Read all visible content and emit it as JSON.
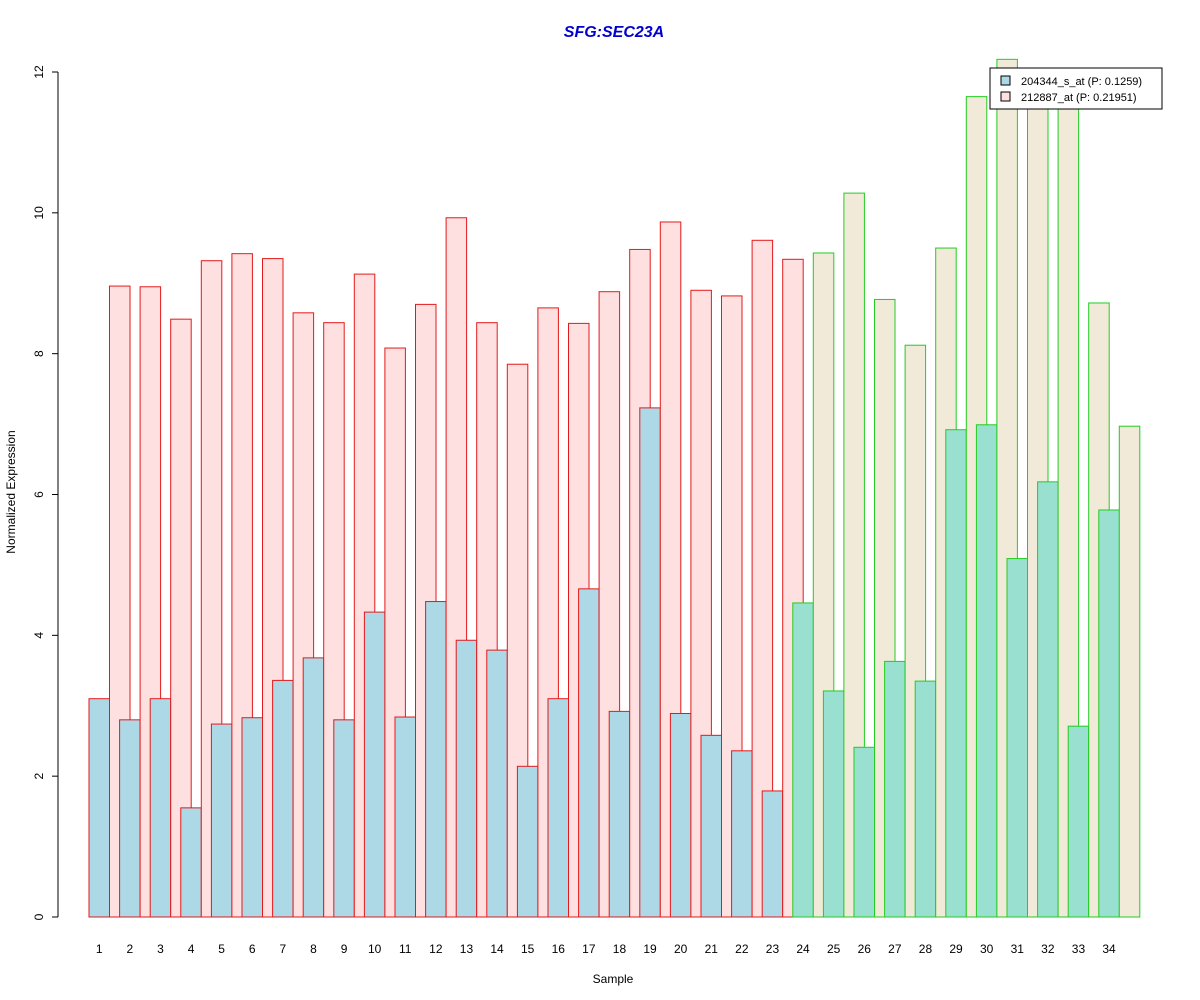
{
  "chart_data": {
    "type": "bar",
    "title": "SFG:SEC23A",
    "xlabel": "Sample",
    "ylabel": "Normalized Expression",
    "ylim": [
      0,
      12
    ],
    "yticks": [
      0,
      2,
      4,
      6,
      8,
      10,
      12
    ],
    "grid": false,
    "legend_position": "top-right",
    "categories": [
      "1",
      "2",
      "3",
      "4",
      "5",
      "6",
      "7",
      "8",
      "9",
      "10",
      "11",
      "12",
      "13",
      "14",
      "15",
      "16",
      "17",
      "18",
      "19",
      "20",
      "21",
      "22",
      "23",
      "24",
      "25",
      "26",
      "27",
      "28",
      "29",
      "30",
      "31",
      "32",
      "33",
      "34"
    ],
    "groups": [
      {
        "range": [
          1,
          23
        ],
        "outline": "#e31a1c",
        "fill_first": "#add8e6",
        "fill_second": "#ffe0e0"
      },
      {
        "range": [
          24,
          34
        ],
        "outline": "#22cc22",
        "fill_first": "#99e0d0",
        "fill_second": "#f2ead8"
      }
    ],
    "series": [
      {
        "name": "204344_s_at (P: 0.1259)",
        "values": [
          3.1,
          2.8,
          3.1,
          1.55,
          2.74,
          2.83,
          3.36,
          3.68,
          2.8,
          4.33,
          2.84,
          4.48,
          3.93,
          3.79,
          2.14,
          3.1,
          4.66,
          2.92,
          7.23,
          2.89,
          2.58,
          2.36,
          1.79,
          4.46,
          3.21,
          2.41,
          3.63,
          3.35,
          6.92,
          6.99,
          5.09,
          6.18,
          2.71,
          5.78
        ]
      },
      {
        "name": "212887_at (P: 0.21951)",
        "values": [
          8.96,
          8.95,
          8.49,
          9.32,
          9.42,
          9.35,
          8.58,
          8.44,
          9.13,
          8.08,
          8.7,
          9.93,
          8.44,
          7.85,
          8.65,
          8.43,
          8.88,
          9.48,
          9.87,
          8.9,
          8.82,
          9.61,
          9.34,
          9.43,
          10.28,
          8.77,
          8.12,
          9.5,
          11.65,
          12.18,
          11.61,
          11.61,
          8.72,
          6.97
        ]
      }
    ],
    "legend": [
      {
        "label": "204344_s_at (P: 0.1259)",
        "swatch": "#add8e6"
      },
      {
        "label": "212887_at (P: 0.21951)",
        "swatch": "#ffe0e0"
      }
    ],
    "title_color": "#0000cc"
  }
}
